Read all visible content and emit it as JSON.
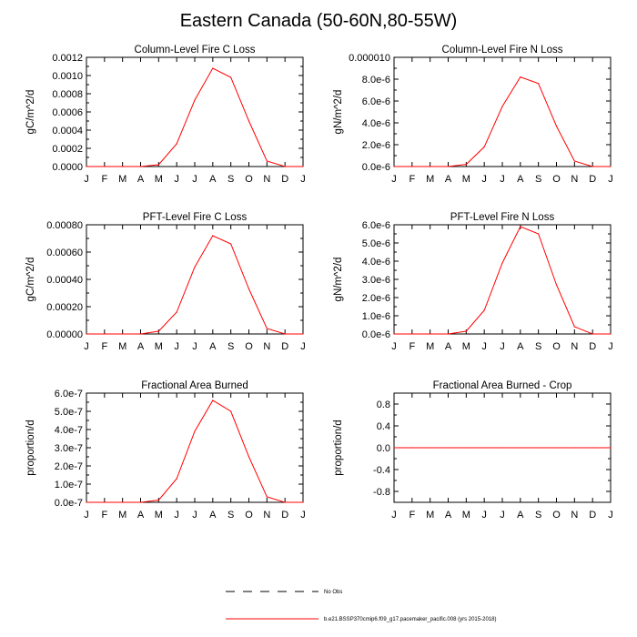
{
  "title": "Eastern Canada (50-60N,80-55W)",
  "colors": {
    "series": "#ff0000",
    "axis": "#000000",
    "obs": "#000000"
  },
  "legend": {
    "obs_label": "No Obs",
    "model_label": "b.e21.BSSP370cmip6.f09_g17.pacemaker_pacific.008 (yrs 2015-2018)"
  },
  "chart_data": [
    {
      "type": "line",
      "title": "Column-Level Fire C Loss",
      "ylabel": "gC/m^2/d",
      "categories": [
        "J",
        "F",
        "M",
        "A",
        "M",
        "J",
        "J",
        "A",
        "S",
        "O",
        "N",
        "D",
        "J"
      ],
      "ylim": [
        0,
        0.0012
      ],
      "yticks": [
        0,
        0.0002,
        0.0004,
        0.0006,
        0.0008,
        0.001,
        0.0012
      ],
      "ytick_labels": [
        "0.0000",
        "0.0002",
        "0.0004",
        "0.0006",
        "0.0008",
        "0.0010",
        "0.0012"
      ],
      "series": [
        {
          "name": "b.e21.BSSP370cmip6.f09_g17.pacemaker_pacific.008 (yrs 2015-2018)",
          "values": [
            0,
            0,
            0,
            0,
            2e-05,
            0.00025,
            0.00073,
            0.00108,
            0.00098,
            0.0005,
            6e-05,
            0,
            0
          ]
        }
      ]
    },
    {
      "type": "line",
      "title": "Column-Level Fire N Loss",
      "ylabel": "gN/m^2/d",
      "categories": [
        "J",
        "F",
        "M",
        "A",
        "M",
        "J",
        "J",
        "A",
        "S",
        "O",
        "N",
        "D",
        "J"
      ],
      "ylim": [
        0,
        1e-05
      ],
      "yticks": [
        0,
        2e-06,
        4e-06,
        6e-06,
        8e-06,
        1e-05
      ],
      "ytick_labels": [
        "0.0e-6",
        "2.0e-6",
        "4.0e-6",
        "6.0e-6",
        "8.0e-6",
        "0.000010"
      ],
      "series": [
        {
          "name": "b.e21.BSSP370cmip6.f09_g17.pacemaker_pacific.008 (yrs 2015-2018)",
          "values": [
            0,
            0,
            0,
            0,
            2e-07,
            1.8e-06,
            5.5e-06,
            8.2e-06,
            7.6e-06,
            3.7e-06,
            5e-07,
            0,
            0
          ]
        }
      ]
    },
    {
      "type": "line",
      "title": "PFT-Level Fire C Loss",
      "ylabel": "gC/m^2/d",
      "categories": [
        "J",
        "F",
        "M",
        "A",
        "M",
        "J",
        "J",
        "A",
        "S",
        "O",
        "N",
        "D",
        "J"
      ],
      "ylim": [
        0,
        0.0008
      ],
      "yticks": [
        0,
        0.0002,
        0.0004,
        0.0006,
        0.0008
      ],
      "ytick_labels": [
        "0.00000",
        "0.00020",
        "0.00040",
        "0.00060",
        "0.00080"
      ],
      "series": [
        {
          "name": "b.e21.BSSP370cmip6.f09_g17.pacemaker_pacific.008 (yrs 2015-2018)",
          "values": [
            0,
            0,
            0,
            0,
            2e-05,
            0.00016,
            0.00049,
            0.00072,
            0.00066,
            0.00033,
            4e-05,
            0,
            0
          ]
        }
      ]
    },
    {
      "type": "line",
      "title": "PFT-Level Fire N Loss",
      "ylabel": "gN/m^2/d",
      "categories": [
        "J",
        "F",
        "M",
        "A",
        "M",
        "J",
        "J",
        "A",
        "S",
        "O",
        "N",
        "D",
        "J"
      ],
      "ylim": [
        0,
        6e-06
      ],
      "yticks": [
        0,
        1e-06,
        2e-06,
        3e-06,
        4e-06,
        5e-06,
        6e-06
      ],
      "ytick_labels": [
        "0.0e-6",
        "1.0e-6",
        "2.0e-6",
        "3.0e-6",
        "4.0e-6",
        "5.0e-6",
        "6.0e-6"
      ],
      "series": [
        {
          "name": "b.e21.BSSP370cmip6.f09_g17.pacemaker_pacific.008 (yrs 2015-2018)",
          "values": [
            0,
            0,
            0,
            0,
            1.5e-07,
            1.3e-06,
            3.9e-06,
            5.9e-06,
            5.5e-06,
            2.7e-06,
            4e-07,
            0,
            0
          ]
        }
      ]
    },
    {
      "type": "line",
      "title": "Fractional Area Burned",
      "ylabel": "proportion/d",
      "categories": [
        "J",
        "F",
        "M",
        "A",
        "M",
        "J",
        "J",
        "A",
        "S",
        "O",
        "N",
        "D",
        "J"
      ],
      "ylim": [
        0,
        6e-07
      ],
      "yticks": [
        0,
        1e-07,
        2e-07,
        3e-07,
        4e-07,
        5e-07,
        6e-07
      ],
      "ytick_labels": [
        "0.0e-7",
        "1.0e-7",
        "2.0e-7",
        "3.0e-7",
        "4.0e-7",
        "5.0e-7",
        "6.0e-7"
      ],
      "series": [
        {
          "name": "b.e21.BSSP370cmip6.f09_g17.pacemaker_pacific.008 (yrs 2015-2018)",
          "values": [
            0,
            0,
            0,
            0,
            1.2e-08,
            1.3e-07,
            3.9e-07,
            5.6e-07,
            5e-07,
            2.5e-07,
            3e-08,
            0,
            0
          ]
        }
      ]
    },
    {
      "type": "line",
      "title": "Fractional Area Burned - Crop",
      "ylabel": "proportion/d",
      "categories": [
        "J",
        "F",
        "M",
        "A",
        "M",
        "J",
        "J",
        "A",
        "S",
        "O",
        "N",
        "D",
        "J"
      ],
      "ylim": [
        -1,
        1
      ],
      "yticks": [
        -0.8,
        -0.4,
        0,
        0.4,
        0.8
      ],
      "ytick_labels": [
        "-0.8",
        "-0.4",
        "0.0",
        "0.4",
        "0.8"
      ],
      "series": [
        {
          "name": "b.e21.BSSP370cmip6.f09_g17.pacemaker_pacific.008 (yrs 2015-2018)",
          "values": [
            0,
            0,
            0,
            0,
            0,
            0,
            0,
            0,
            0,
            0,
            0,
            0,
            0
          ]
        }
      ]
    }
  ]
}
